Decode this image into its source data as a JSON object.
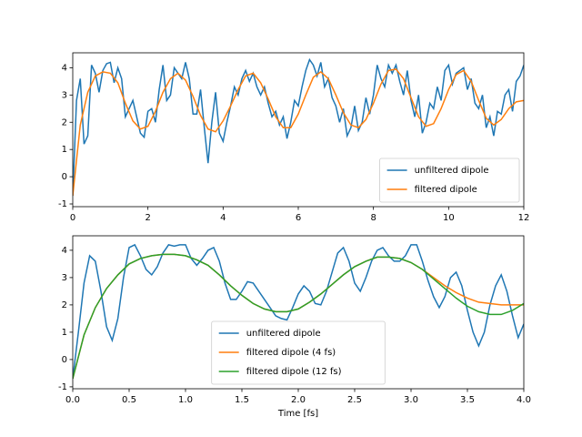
{
  "chart_data": [
    {
      "type": "line",
      "xlim": [
        0,
        12
      ],
      "ylim": [
        -1.1,
        4.55
      ],
      "xticks": [
        0,
        2,
        4,
        6,
        8,
        10,
        12
      ],
      "yticks": [
        -1,
        0,
        1,
        2,
        3,
        4
      ],
      "legend": "lower right",
      "series": [
        {
          "name": "unfiltered dipole",
          "color": "#1f77b4",
          "x": [
            0,
            0.1,
            0.2,
            0.3,
            0.4,
            0.5,
            0.6,
            0.7,
            0.8,
            0.9,
            1.0,
            1.1,
            1.2,
            1.3,
            1.4,
            1.5,
            1.6,
            1.7,
            1.8,
            1.9,
            2.0,
            2.1,
            2.2,
            2.3,
            2.4,
            2.5,
            2.6,
            2.7,
            2.8,
            2.9,
            3.0,
            3.1,
            3.2,
            3.3,
            3.4,
            3.5,
            3.6,
            3.7,
            3.8,
            3.9,
            4.0,
            4.1,
            4.2,
            4.3,
            4.4,
            4.5,
            4.6,
            4.7,
            4.8,
            4.9,
            5.0,
            5.1,
            5.2,
            5.3,
            5.4,
            5.5,
            5.6,
            5.7,
            5.8,
            5.9,
            6.0,
            6.1,
            6.2,
            6.3,
            6.4,
            6.5,
            6.6,
            6.7,
            6.8,
            6.9,
            7.0,
            7.1,
            7.2,
            7.3,
            7.4,
            7.5,
            7.6,
            7.7,
            7.8,
            7.9,
            8.0,
            8.1,
            8.2,
            8.3,
            8.4,
            8.5,
            8.6,
            8.7,
            8.8,
            8.9,
            9.0,
            9.1,
            9.2,
            9.3,
            9.4,
            9.5,
            9.6,
            9.7,
            9.8,
            9.9,
            10.0,
            10.1,
            10.2,
            10.3,
            10.4,
            10.5,
            10.6,
            10.7,
            10.8,
            10.9,
            11.0,
            11.1,
            11.2,
            11.3,
            11.4,
            11.5,
            11.6,
            11.7,
            11.8,
            11.9,
            12.0
          ],
          "values": [
            -0.7,
            2.8,
            3.6,
            1.2,
            1.5,
            4.1,
            3.8,
            3.1,
            3.9,
            4.15,
            4.2,
            3.45,
            4.0,
            3.6,
            2.2,
            2.5,
            2.8,
            2.2,
            1.6,
            1.45,
            2.4,
            2.5,
            2.0,
            3.2,
            4.1,
            2.8,
            3.0,
            4.0,
            3.8,
            3.6,
            4.2,
            3.6,
            2.3,
            2.3,
            3.2,
            1.8,
            0.5,
            2.0,
            3.1,
            1.6,
            1.3,
            2.0,
            2.6,
            3.3,
            3.0,
            3.6,
            3.9,
            3.5,
            3.8,
            3.3,
            3.0,
            3.3,
            2.7,
            2.2,
            2.4,
            1.9,
            2.2,
            1.4,
            2.0,
            2.8,
            2.6,
            3.3,
            3.9,
            4.3,
            4.1,
            3.7,
            4.2,
            3.3,
            3.6,
            2.9,
            2.6,
            2.0,
            2.5,
            1.5,
            1.8,
            2.6,
            1.7,
            2.0,
            2.9,
            2.3,
            3.0,
            4.1,
            3.6,
            3.3,
            4.1,
            3.8,
            4.1,
            3.5,
            3.0,
            3.9,
            2.8,
            2.2,
            3.0,
            1.6,
            2.0,
            2.7,
            2.5,
            3.3,
            2.8,
            3.9,
            4.1,
            3.4,
            3.8,
            3.9,
            4.0,
            3.2,
            3.6,
            2.7,
            2.5,
            3.0,
            1.8,
            2.2,
            1.5,
            2.4,
            2.3,
            3.0,
            3.2,
            2.4,
            3.5,
            3.7,
            4.1
          ]
        },
        {
          "name": "filtered dipole",
          "color": "#ff7f0e",
          "x": [
            0,
            0.2,
            0.4,
            0.6,
            0.8,
            1.0,
            1.2,
            1.4,
            1.6,
            1.8,
            2.0,
            2.2,
            2.4,
            2.6,
            2.8,
            3.0,
            3.2,
            3.4,
            3.6,
            3.8,
            4.0,
            4.2,
            4.4,
            4.6,
            4.8,
            5.0,
            5.2,
            5.4,
            5.6,
            5.8,
            6.0,
            6.2,
            6.4,
            6.6,
            6.8,
            7.0,
            7.2,
            7.4,
            7.6,
            7.8,
            8.0,
            8.2,
            8.4,
            8.6,
            8.8,
            9.0,
            9.2,
            9.4,
            9.6,
            9.8,
            10.0,
            10.2,
            10.4,
            10.6,
            10.8,
            11.0,
            11.2,
            11.4,
            11.6,
            11.8,
            12.0
          ],
          "values": [
            -0.7,
            1.9,
            3.1,
            3.7,
            3.85,
            3.8,
            3.45,
            2.7,
            2.05,
            1.75,
            1.85,
            2.4,
            3.1,
            3.6,
            3.8,
            3.55,
            2.95,
            2.25,
            1.75,
            1.65,
            2.05,
            2.6,
            3.2,
            3.7,
            3.8,
            3.45,
            2.85,
            2.2,
            1.8,
            1.8,
            2.3,
            3.0,
            3.65,
            3.85,
            3.6,
            3.0,
            2.35,
            1.9,
            1.8,
            2.1,
            2.7,
            3.4,
            3.9,
            3.95,
            3.6,
            2.9,
            2.2,
            1.85,
            1.95,
            2.5,
            3.2,
            3.75,
            3.9,
            3.5,
            2.8,
            2.15,
            1.9,
            2.1,
            2.5,
            2.75,
            2.8
          ]
        }
      ]
    },
    {
      "type": "line",
      "xlim": [
        0,
        4
      ],
      "ylim": [
        -1.07,
        4.53
      ],
      "xlabel": "Time [fs]",
      "xticks": [
        {
          "value": 0,
          "label": "0.0"
        },
        0.5,
        {
          "value": 1,
          "label": "1.0"
        },
        1.5,
        {
          "value": 2,
          "label": "2.0"
        },
        2.5,
        {
          "value": 3,
          "label": "3.0"
        },
        3.5,
        {
          "value": 4,
          "label": "4.0"
        }
      ],
      "yticks": [
        -1,
        0,
        1,
        2,
        3,
        4
      ],
      "legend": "lower center",
      "series": [
        {
          "name": "unfiltered dipole",
          "color": "#1f77b4",
          "x": [
            0,
            0.05,
            0.1,
            0.15,
            0.2,
            0.25,
            0.3,
            0.35,
            0.4,
            0.45,
            0.5,
            0.55,
            0.6,
            0.65,
            0.7,
            0.75,
            0.8,
            0.85,
            0.9,
            0.95,
            1.0,
            1.05,
            1.1,
            1.15,
            1.2,
            1.25,
            1.3,
            1.35,
            1.4,
            1.45,
            1.5,
            1.55,
            1.6,
            1.65,
            1.7,
            1.75,
            1.8,
            1.85,
            1.9,
            1.95,
            2.0,
            2.05,
            2.1,
            2.15,
            2.2,
            2.25,
            2.3,
            2.35,
            2.4,
            2.45,
            2.5,
            2.55,
            2.6,
            2.65,
            2.7,
            2.75,
            2.8,
            2.85,
            2.9,
            2.95,
            3.0,
            3.05,
            3.1,
            3.15,
            3.2,
            3.25,
            3.3,
            3.35,
            3.4,
            3.45,
            3.5,
            3.55,
            3.6,
            3.65,
            3.7,
            3.75,
            3.8,
            3.85,
            3.9,
            3.95,
            4.0
          ],
          "values": [
            -0.7,
            1.0,
            2.8,
            3.8,
            3.6,
            2.5,
            1.2,
            0.7,
            1.5,
            3.0,
            4.1,
            4.2,
            3.8,
            3.3,
            3.1,
            3.4,
            3.9,
            4.2,
            4.15,
            4.2,
            4.2,
            3.7,
            3.45,
            3.7,
            4.0,
            4.1,
            3.6,
            2.8,
            2.2,
            2.2,
            2.5,
            2.85,
            2.8,
            2.5,
            2.2,
            1.9,
            1.6,
            1.5,
            1.45,
            1.9,
            2.4,
            2.7,
            2.5,
            2.05,
            2.0,
            2.5,
            3.2,
            3.9,
            4.1,
            3.6,
            2.8,
            2.5,
            3.0,
            3.6,
            4.0,
            4.1,
            3.8,
            3.6,
            3.6,
            3.8,
            4.2,
            4.2,
            3.6,
            2.9,
            2.3,
            1.9,
            2.3,
            3.0,
            3.2,
            2.7,
            1.8,
            1.0,
            0.5,
            1.0,
            2.0,
            2.7,
            3.1,
            2.5,
            1.6,
            0.8,
            1.3
          ]
        },
        {
          "name": "filtered dipole (4 fs)",
          "color": "#ff7f0e",
          "x": [
            0,
            0.1,
            0.2,
            0.3,
            0.4,
            0.5,
            0.6,
            0.7,
            0.8,
            0.9,
            1.0,
            1.1,
            1.2,
            1.3,
            1.4,
            1.5,
            1.6,
            1.7,
            1.8,
            1.9,
            2.0,
            2.1,
            2.2,
            2.3,
            2.4,
            2.5,
            2.6,
            2.7,
            2.8,
            2.9,
            3.0,
            3.1,
            3.2,
            3.3,
            3.4,
            3.5,
            3.6,
            3.7,
            3.8,
            3.9,
            4.0
          ],
          "values": [
            -0.7,
            0.9,
            1.9,
            2.6,
            3.1,
            3.5,
            3.7,
            3.8,
            3.85,
            3.85,
            3.8,
            3.65,
            3.45,
            3.1,
            2.7,
            2.35,
            2.05,
            1.85,
            1.75,
            1.75,
            1.85,
            2.1,
            2.4,
            2.75,
            3.1,
            3.4,
            3.6,
            3.75,
            3.75,
            3.7,
            3.55,
            3.3,
            3.0,
            2.7,
            2.45,
            2.25,
            2.1,
            2.05,
            2.0,
            2.0,
            2.0
          ]
        },
        {
          "name": "filtered dipole (12 fs)",
          "color": "#2ca02c",
          "x": [
            0,
            0.1,
            0.2,
            0.3,
            0.4,
            0.5,
            0.6,
            0.7,
            0.8,
            0.9,
            1.0,
            1.1,
            1.2,
            1.3,
            1.4,
            1.5,
            1.6,
            1.7,
            1.8,
            1.9,
            2.0,
            2.1,
            2.2,
            2.3,
            2.4,
            2.5,
            2.6,
            2.7,
            2.8,
            2.9,
            3.0,
            3.1,
            3.2,
            3.3,
            3.4,
            3.5,
            3.6,
            3.7,
            3.8,
            3.9,
            4.0
          ],
          "values": [
            -0.7,
            0.9,
            1.9,
            2.6,
            3.1,
            3.5,
            3.7,
            3.8,
            3.85,
            3.85,
            3.8,
            3.65,
            3.45,
            3.1,
            2.7,
            2.35,
            2.05,
            1.85,
            1.75,
            1.75,
            1.85,
            2.1,
            2.4,
            2.75,
            3.1,
            3.4,
            3.6,
            3.75,
            3.75,
            3.7,
            3.55,
            3.3,
            2.95,
            2.6,
            2.25,
            1.95,
            1.75,
            1.65,
            1.65,
            1.8,
            2.05
          ]
        }
      ]
    }
  ]
}
